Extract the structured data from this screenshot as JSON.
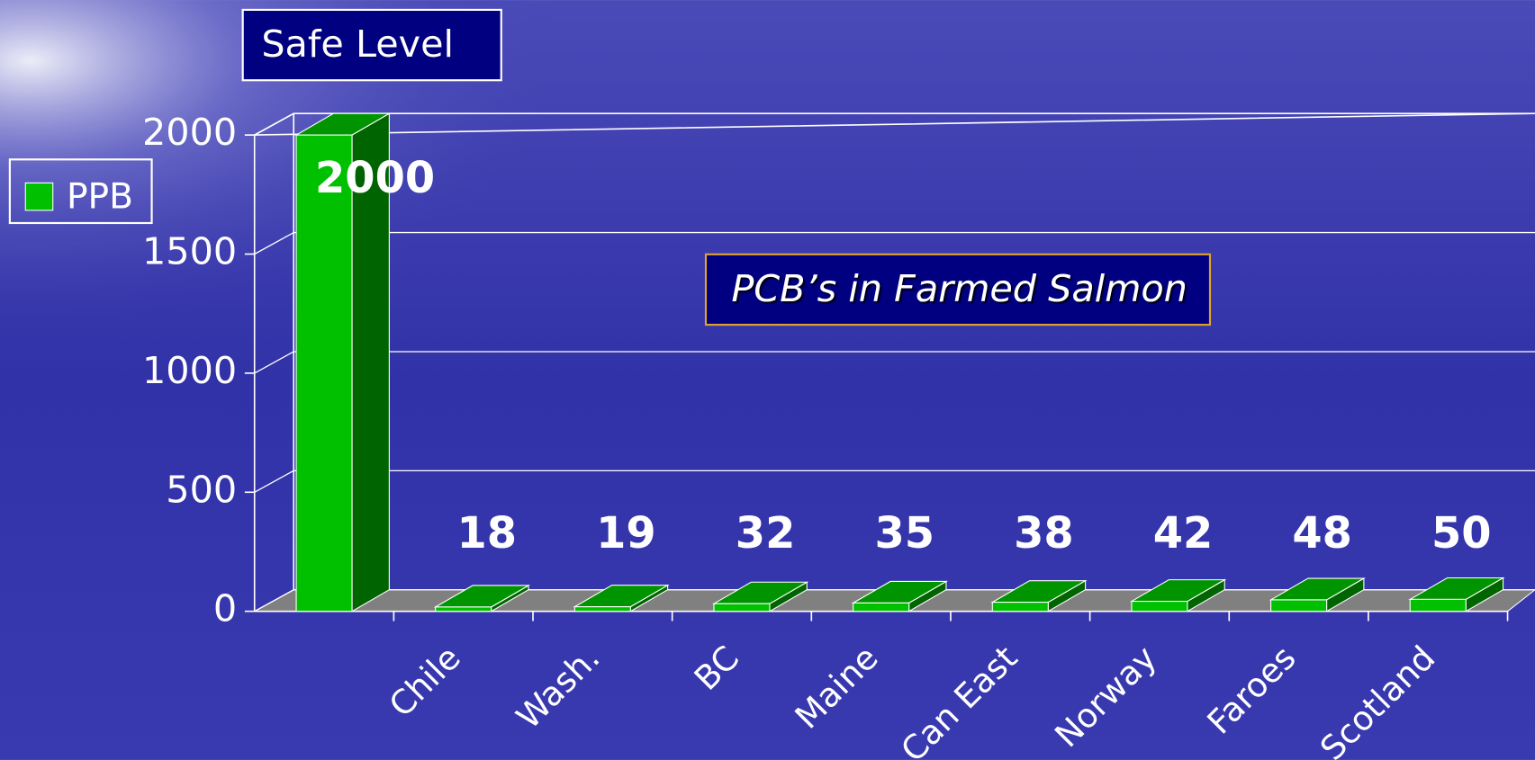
{
  "chart_data": {
    "type": "bar3d",
    "title": "PCB’s in Farmed Salmon",
    "annotation": "Safe Level",
    "categories": [
      null,
      "Chile",
      "Wash.",
      "BC",
      "Maine",
      "Can East",
      "Norway",
      "Faroes",
      "Scotland"
    ],
    "series": [
      {
        "name": "PPB",
        "color": "#00c000",
        "values": [
          2000,
          18,
          19,
          32,
          35,
          38,
          42,
          48,
          50
        ]
      }
    ],
    "ylim": [
      0,
      2000
    ],
    "yticks": [
      0,
      500,
      1000,
      1500,
      2000
    ],
    "grid": true,
    "legend": "left"
  }
}
